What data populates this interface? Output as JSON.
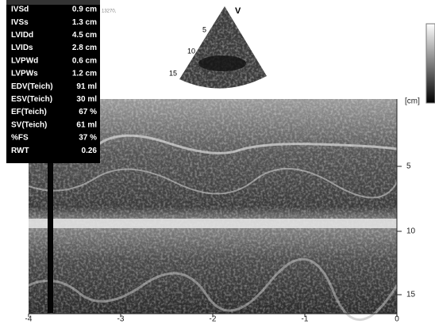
{
  "header": {
    "code": "13270,"
  },
  "measurements": [
    {
      "label": "IVSd",
      "value": "0.9 cm"
    },
    {
      "label": "IVSs",
      "value": "1.3 cm"
    },
    {
      "label": "LVIDd",
      "value": "4.5 cm"
    },
    {
      "label": "LVIDs",
      "value": "2.8 cm"
    },
    {
      "label": "LVPWd",
      "value": "0.6 cm"
    },
    {
      "label": "LVPWs",
      "value": "1.2 cm"
    },
    {
      "label": "EDV(Teich)",
      "value": "91 ml"
    },
    {
      "label": "ESV(Teich)",
      "value": "30 ml"
    },
    {
      "label": "EF(Teich)",
      "value": "67 %"
    },
    {
      "label": "SV(Teich)",
      "value": "61 ml"
    },
    {
      "label": "%FS",
      "value": "37 %"
    },
    {
      "label": "RWT",
      "value": "0.26"
    }
  ],
  "sector": {
    "marker": "V",
    "depth_labels": [
      "5",
      "10",
      "15"
    ]
  },
  "mmode": {
    "depth_unit": "[cm]",
    "depth_labels": [
      "5",
      "10",
      "15"
    ],
    "time_labels": [
      "-4",
      "-3",
      "-2",
      "-1",
      "0"
    ]
  }
}
